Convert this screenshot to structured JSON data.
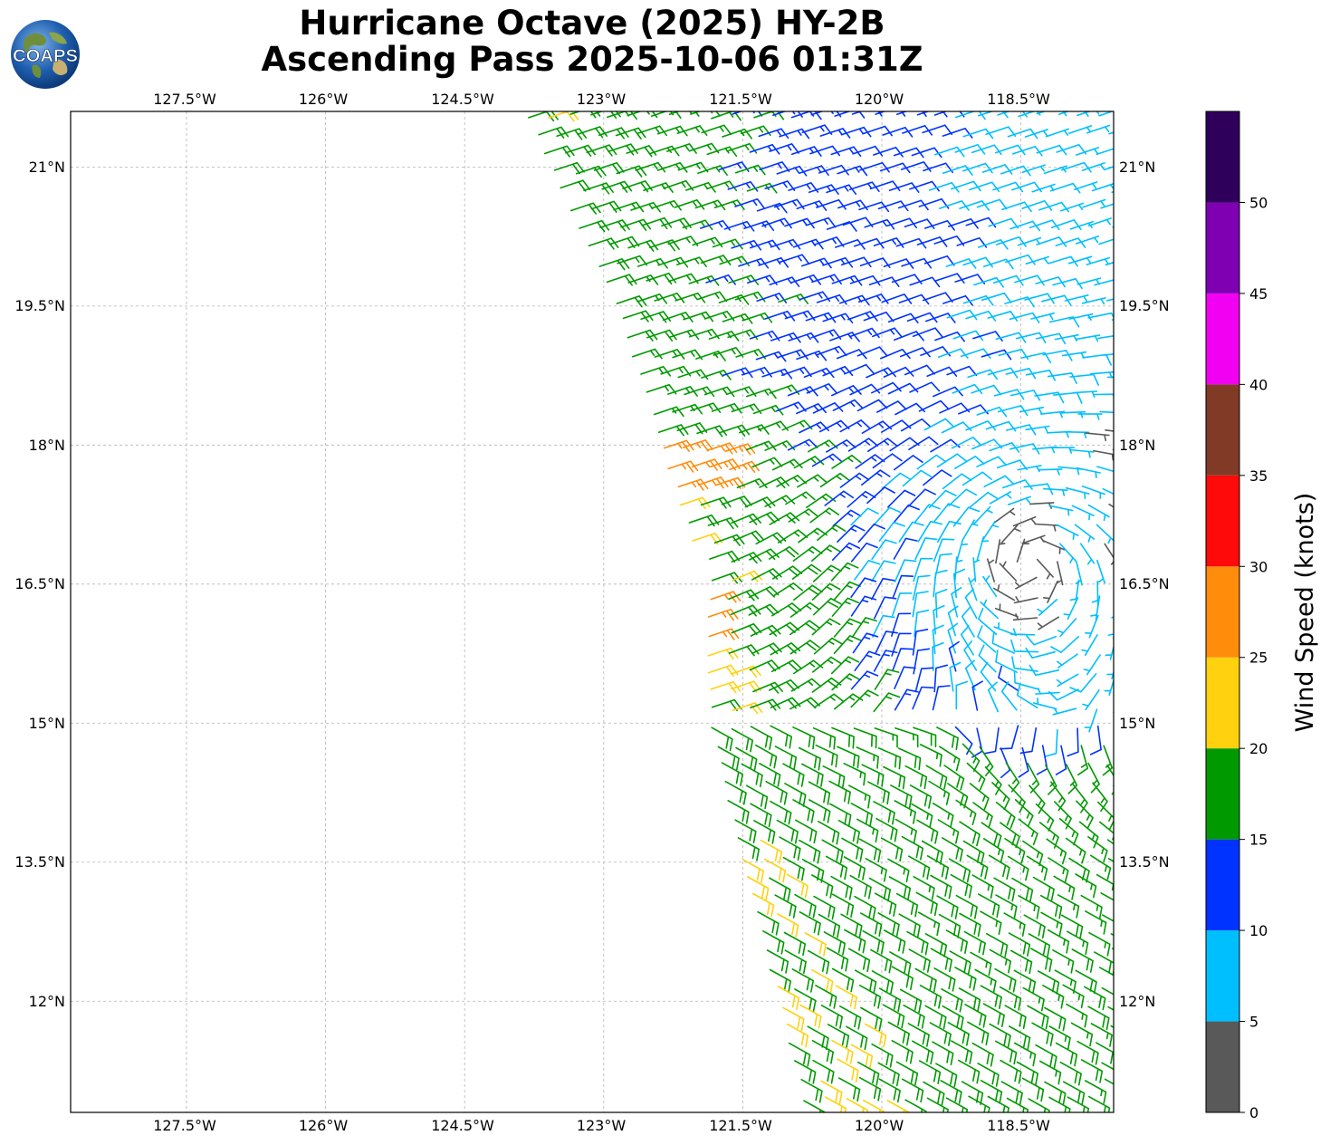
{
  "title": {
    "line1": "Hurricane Octave (2025) HY-2B",
    "line2": "Ascending Pass 2025-10-06 01:31Z"
  },
  "logo": {
    "text": "COAPS",
    "icon": "globe-logo-icon"
  },
  "map": {
    "lon_ticks": [
      "127.5°W",
      "126°W",
      "124.5°W",
      "123°W",
      "121.5°W",
      "120°W",
      "118.5°W"
    ],
    "lat_ticks": [
      "21°N",
      "19.5°N",
      "18°N",
      "16.5°N",
      "15°N",
      "13.5°N",
      "12°N"
    ],
    "lon_range": [
      -128.75,
      -117.5
    ],
    "lat_range": [
      10.8,
      21.6
    ],
    "grid": true
  },
  "colorbar": {
    "title": "Wind Speed (knots)",
    "ticks": [
      "0",
      "5",
      "10",
      "15",
      "20",
      "25",
      "30",
      "35",
      "40",
      "45",
      "50"
    ],
    "bins": [
      {
        "from": 0,
        "to": 5,
        "color": "#595959"
      },
      {
        "from": 5,
        "to": 10,
        "color": "#00bfff"
      },
      {
        "from": 10,
        "to": 15,
        "color": "#0033ff"
      },
      {
        "from": 15,
        "to": 20,
        "color": "#009900"
      },
      {
        "from": 20,
        "to": 25,
        "color": "#ffd10f"
      },
      {
        "from": 25,
        "to": 30,
        "color": "#ff8c0a"
      },
      {
        "from": 30,
        "to": 35,
        "color": "#ff0a0a"
      },
      {
        "from": 35,
        "to": 40,
        "color": "#803a26"
      },
      {
        "from": 40,
        "to": 45,
        "color": "#f200f2"
      },
      {
        "from": 45,
        "to": 50,
        "color": "#7f00b2"
      },
      {
        "from": 50,
        "to": 55,
        "color": "#2e005c"
      }
    ]
  }
}
